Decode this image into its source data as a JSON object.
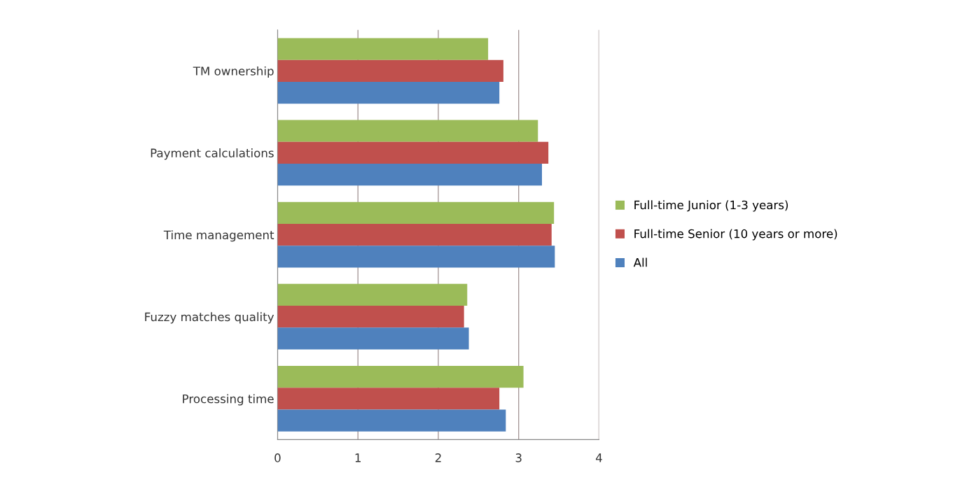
{
  "chart_data": {
    "type": "bar",
    "orientation": "horizontal",
    "categories": [
      "TM ownership",
      "Payment calculations",
      "Time management",
      "Fuzzy matches quality",
      "Processing time"
    ],
    "series": [
      {
        "name": "Full-time Junior (1-3 years)",
        "color": "#9bbb59",
        "values": [
          2.62,
          3.24,
          3.44,
          2.36,
          3.06
        ]
      },
      {
        "name": "Full-time Senior (10 years or more)",
        "color": "#c0504d",
        "values": [
          2.81,
          3.37,
          3.41,
          2.32,
          2.76
        ]
      },
      {
        "name": "All",
        "color": "#4f81bd",
        "values": [
          2.76,
          3.29,
          3.45,
          2.38,
          2.84
        ]
      }
    ],
    "xlim": [
      0,
      4
    ],
    "xticks": [
      0,
      1,
      2,
      3,
      4
    ],
    "grid": "x",
    "legend": "right"
  }
}
